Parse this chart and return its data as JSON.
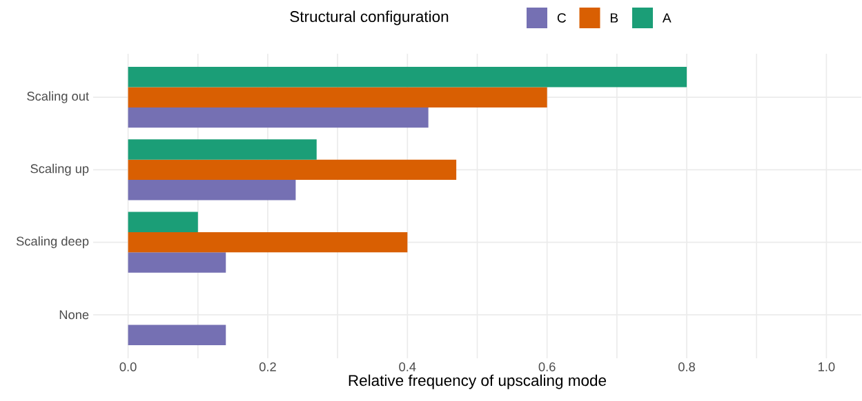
{
  "chart_data": {
    "type": "bar",
    "orientation": "horizontal",
    "xlabel": "Relative frequency of upscaling mode",
    "legend_title": "Structural configuration",
    "categories": [
      "Scaling out",
      "Scaling up",
      "Scaling deep",
      "None"
    ],
    "series": [
      {
        "name": "C",
        "color": "#7570b3",
        "values": [
          0.43,
          0.24,
          0.14,
          0.14
        ]
      },
      {
        "name": "B",
        "color": "#d95f02",
        "values": [
          0.6,
          0.47,
          0.4,
          0
        ]
      },
      {
        "name": "A",
        "color": "#1b9e77",
        "values": [
          0.8,
          0.27,
          0.1,
          0
        ]
      }
    ],
    "xlim": [
      -0.05,
      1.05
    ],
    "xticks": [
      {
        "value": 0,
        "label": "0.0"
      },
      {
        "value": 0.1,
        "label": null
      },
      0.2,
      {
        "value": 0.3,
        "label": null
      },
      0.4,
      {
        "value": 0.5,
        "label": null
      },
      0.6,
      {
        "value": 0.7,
        "label": null
      },
      0.8,
      {
        "value": 0.9,
        "label": null
      },
      {
        "value": 1,
        "label": "1.0"
      }
    ],
    "grid": true,
    "legend": "top"
  }
}
